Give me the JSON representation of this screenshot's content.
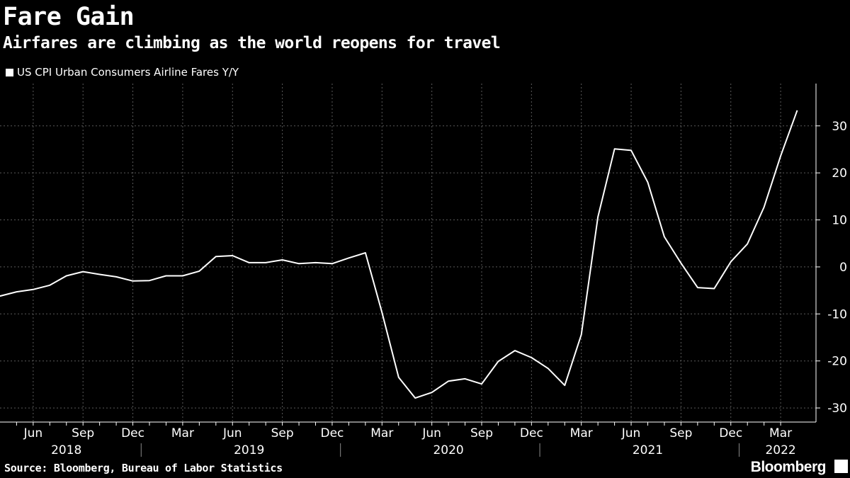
{
  "header": {
    "title": "Fare Gain",
    "subtitle": "Airfares are climbing as the world reopens for travel"
  },
  "legend": {
    "label": "US CPI Urban Consumers Airline Fares Y/Y"
  },
  "footer": {
    "source": "Source: Bloomberg, Bureau of Labor Statistics",
    "brand": "Bloomberg"
  },
  "colors": {
    "background": "#000000",
    "line": "#ffffff",
    "grid": "#5a5a5a",
    "text": "#ffffff"
  },
  "chart_data": {
    "type": "line",
    "title": "Fare Gain",
    "subtitle": "Airfares are climbing as the world reopens for travel",
    "xlabel": "",
    "ylabel": "",
    "x_range": [
      "2018-03",
      "2022-04"
    ],
    "ylim": [
      -33,
      39
    ],
    "y_ticks": [
      30,
      20,
      10,
      0,
      -10,
      -20,
      -30
    ],
    "grid": true,
    "legend_position": "top-left",
    "month_tick_labels": [
      {
        "date": "2018-06",
        "label": "Jun"
      },
      {
        "date": "2018-09",
        "label": "Sep"
      },
      {
        "date": "2018-12",
        "label": "Dec"
      },
      {
        "date": "2019-03",
        "label": "Mar"
      },
      {
        "date": "2019-06",
        "label": "Jun"
      },
      {
        "date": "2019-09",
        "label": "Sep"
      },
      {
        "date": "2019-12",
        "label": "Dec"
      },
      {
        "date": "2020-03",
        "label": "Mar"
      },
      {
        "date": "2020-06",
        "label": "Jun"
      },
      {
        "date": "2020-09",
        "label": "Sep"
      },
      {
        "date": "2020-12",
        "label": "Dec"
      },
      {
        "date": "2021-03",
        "label": "Mar"
      },
      {
        "date": "2021-06",
        "label": "Jun"
      },
      {
        "date": "2021-09",
        "label": "Sep"
      },
      {
        "date": "2021-12",
        "label": "Dec"
      },
      {
        "date": "2022-03",
        "label": "Mar"
      }
    ],
    "year_labels": [
      {
        "year": "2018",
        "date": "2018-08"
      },
      {
        "year": "2019",
        "date": "2019-07"
      },
      {
        "year": "2020",
        "date": "2020-07"
      },
      {
        "year": "2021",
        "date": "2021-07"
      },
      {
        "year": "2022",
        "date": "2022-03"
      }
    ],
    "year_separators": [
      "2019-01",
      "2020-01",
      "2021-01",
      "2022-01"
    ],
    "series": [
      {
        "name": "US CPI Urban Consumers Airline Fares Y/Y",
        "x": [
          "2018-04",
          "2018-05",
          "2018-06",
          "2018-07",
          "2018-08",
          "2018-09",
          "2018-10",
          "2018-11",
          "2018-12",
          "2019-01",
          "2019-02",
          "2019-03",
          "2019-04",
          "2019-05",
          "2019-06",
          "2019-07",
          "2019-08",
          "2019-09",
          "2019-10",
          "2019-11",
          "2019-12",
          "2020-01",
          "2020-02",
          "2020-03",
          "2020-04",
          "2020-05",
          "2020-06",
          "2020-07",
          "2020-08",
          "2020-09",
          "2020-10",
          "2020-11",
          "2020-12",
          "2021-01",
          "2021-02",
          "2021-03",
          "2021-04",
          "2021-05",
          "2021-06",
          "2021-07",
          "2021-08",
          "2021-09",
          "2021-10",
          "2021-11",
          "2021-12",
          "2022-01",
          "2022-02",
          "2022-03",
          "2022-04"
        ],
        "values": [
          -6.2,
          -5.3,
          -4.8,
          -3.9,
          -1.9,
          -1.0,
          -1.6,
          -2.1,
          -3.0,
          -2.9,
          -1.9,
          -1.9,
          -0.9,
          2.2,
          2.4,
          0.9,
          0.9,
          1.5,
          0.7,
          0.9,
          0.7,
          1.9,
          3.0,
          -9.7,
          -23.5,
          -27.9,
          -26.7,
          -24.3,
          -23.8,
          -24.9,
          -20.1,
          -17.8,
          -19.3,
          -21.6,
          -25.2,
          -14.4,
          10.6,
          25.1,
          24.8,
          18.0,
          6.4,
          0.8,
          -4.4,
          -4.6,
          1.1,
          4.9,
          12.7,
          23.6,
          33.3
        ]
      }
    ]
  }
}
